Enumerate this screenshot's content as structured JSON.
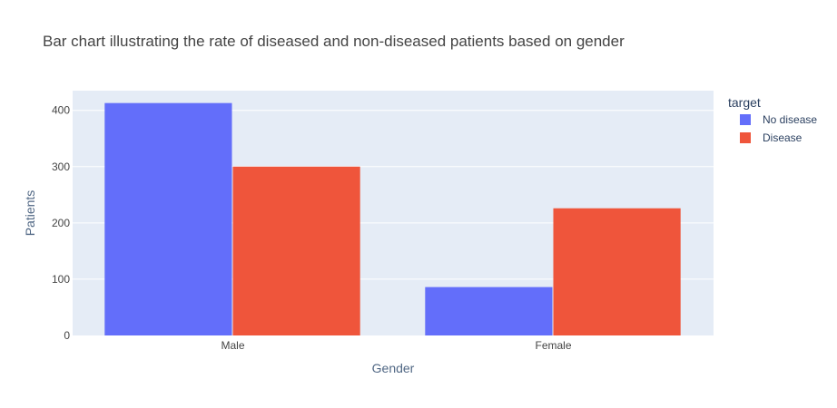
{
  "chart_data": {
    "type": "bar",
    "title": "Bar chart illustrating the rate of diseased and non-diseased patients based on gender",
    "xlabel": "Gender",
    "ylabel": "Patients",
    "categories": [
      "Male",
      "Female"
    ],
    "series": [
      {
        "name": "No disease",
        "values": [
          413,
          86
        ],
        "color": "#636efa"
      },
      {
        "name": "Disease",
        "values": [
          300,
          226
        ],
        "color": "#ef553b"
      }
    ],
    "ylim": [
      0,
      435
    ],
    "yticks": [
      0,
      100,
      200,
      300,
      400
    ],
    "legend": {
      "title": "target",
      "position": "right"
    },
    "grid": true,
    "plot_background": "#e5ecf6",
    "grid_color": "#ffffff"
  }
}
